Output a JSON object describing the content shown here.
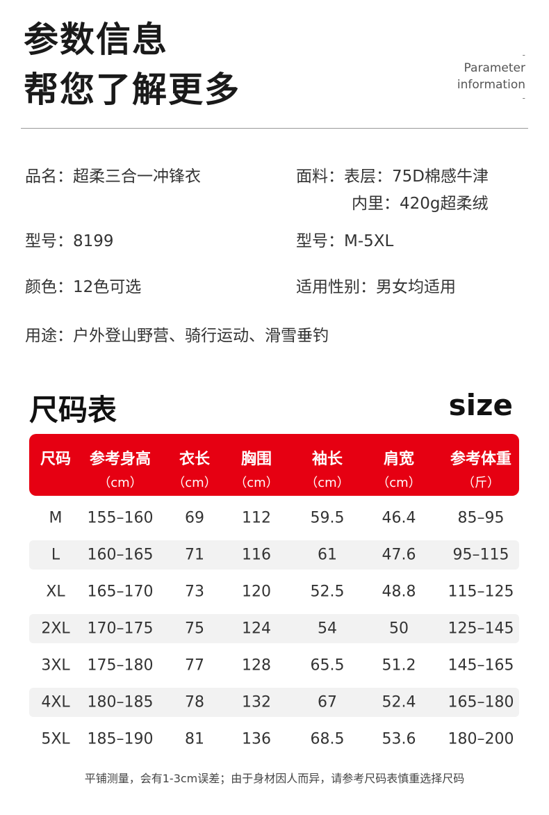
{
  "header": {
    "title_line1": "参数信息",
    "title_line2": "帮您了解更多",
    "en_dash_top": "-",
    "en_line1": "Parameter",
    "en_line2": "information",
    "en_dash_bottom": "-"
  },
  "info": {
    "name": "品名：超柔三合一冲锋衣",
    "fabric": "面料：表层：75D棉感牛津",
    "lining": "内里：420g超柔绒",
    "model": "型号：8199",
    "sizes": "型号：M-5XL",
    "color": "颜色：12色可选",
    "gender": "适用性别：男女均适用",
    "usage": "用途：户外登山野营、骑行运动、滑雪垂钓"
  },
  "size_chart": {
    "title": "尺码表",
    "title_en": "size",
    "header_color": "#e60012",
    "columns": [
      {
        "name": "尺码",
        "unit": ""
      },
      {
        "name": "参考身高",
        "unit": "（cm）"
      },
      {
        "name": "衣长",
        "unit": "（cm）"
      },
      {
        "name": "胸围",
        "unit": "（cm）"
      },
      {
        "name": "袖长",
        "unit": "（cm）"
      },
      {
        "name": "肩宽",
        "unit": "（cm）"
      },
      {
        "name": "参考体重",
        "unit": "（斤）"
      }
    ],
    "rows": [
      [
        "M",
        "155–160",
        "69",
        "112",
        "59.5",
        "46.4",
        "85–95"
      ],
      [
        "L",
        "160–165",
        "71",
        "116",
        "61",
        "47.6",
        "95–115"
      ],
      [
        "XL",
        "165–170",
        "73",
        "120",
        "52.5",
        "48.8",
        "115–125"
      ],
      [
        "2XL",
        "170–175",
        "75",
        "124",
        "54",
        "50",
        "125–145"
      ],
      [
        "3XL",
        "175–180",
        "77",
        "128",
        "65.5",
        "51.2",
        "145–165"
      ],
      [
        "4XL",
        "180–185",
        "78",
        "132",
        "67",
        "52.4",
        "165–180"
      ],
      [
        "5XL",
        "185–190",
        "81",
        "136",
        "68.5",
        "53.6",
        "180–200"
      ]
    ],
    "note": "平铺测量，会有1-3cm误差；由于身材因人而异，请参考尺码表慎重选择尺码"
  }
}
